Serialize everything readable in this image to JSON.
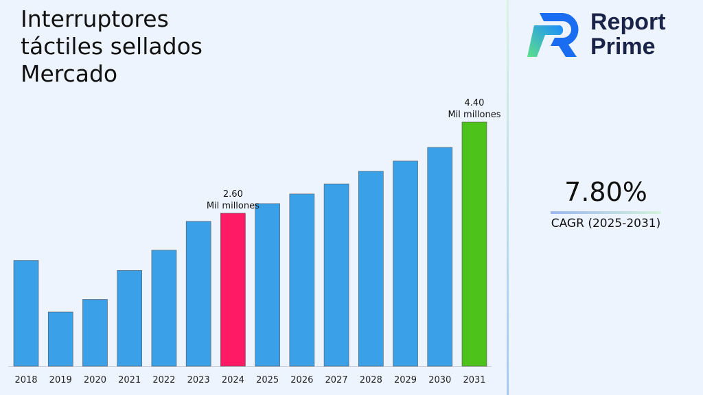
{
  "title": "Interruptores táctiles sellados Mercado",
  "brand": {
    "name_line1": "Report",
    "name_line2": "Prime"
  },
  "cagr": {
    "value": "7.80%",
    "label": "CAGR (2025-2031)"
  },
  "colors": {
    "bar": "#3aa0e8",
    "highlight_2024": "#ff1a66",
    "highlight_2031": "#4cc21a"
  },
  "chart_data": {
    "type": "bar",
    "categories": [
      "2018",
      "2019",
      "2020",
      "2021",
      "2022",
      "2023",
      "2024",
      "2025",
      "2026",
      "2027",
      "2028",
      "2029",
      "2030",
      "2031"
    ],
    "values": [
      1.67,
      0.65,
      0.9,
      1.47,
      1.87,
      2.44,
      2.6,
      2.79,
      2.98,
      3.18,
      3.43,
      3.63,
      3.9,
      4.4
    ],
    "annotations": [
      {
        "category": "2024",
        "value_label": "2.60",
        "unit_label": "Mil millones"
      },
      {
        "category": "2031",
        "value_label": "4.40",
        "unit_label": "Mil millones"
      }
    ],
    "ylim": [
      -0.42,
      4.4
    ],
    "grid": false,
    "title": "",
    "xlabel": "",
    "ylabel": ""
  }
}
